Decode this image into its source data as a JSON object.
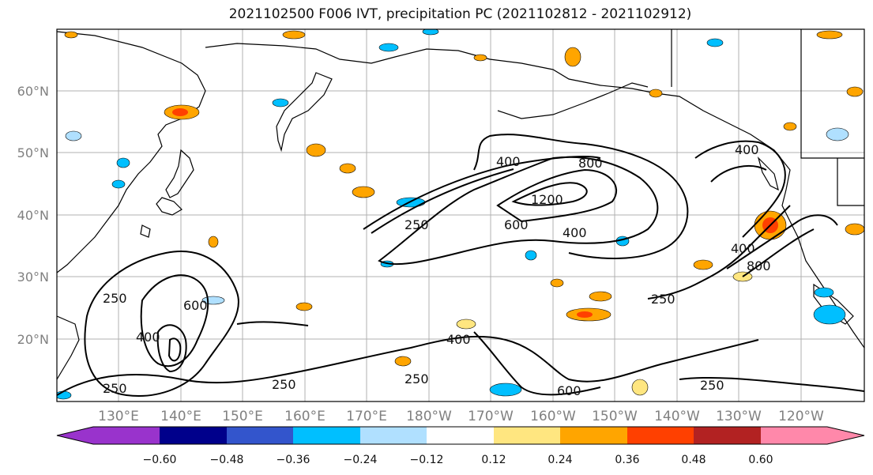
{
  "title": "2021102500 F006 IVT, precipitation PC (2021102812 - 2021102912)",
  "lat_labels": [
    "60°N",
    "50°N",
    "40°N",
    "30°N",
    "20°N"
  ],
  "lon_labels": [
    "130°E",
    "140°E",
    "150°E",
    "160°E",
    "170°E",
    "180°W",
    "170°W",
    "160°W",
    "150°W",
    "140°W",
    "130°W",
    "120°W"
  ],
  "colorbar": {
    "colors": [
      "#9933cc",
      "#00008b",
      "#3355cc",
      "#00bfff",
      "#b0e0ff",
      "#ffffff",
      "#ffe680",
      "#ffa500",
      "#ff4000",
      "#b22222",
      "#ff88aa"
    ],
    "tick_labels": [
      "−0.60",
      "−0.48",
      "−0.36",
      "−0.24",
      "−0.12",
      "0.12",
      "0.24",
      "0.36",
      "0.48",
      "0.60"
    ]
  },
  "contour_labels": [
    "400",
    "800",
    "1200",
    "600",
    "400",
    "250",
    "250",
    "600",
    "400",
    "250",
    "250",
    "400",
    "250",
    "600",
    "250",
    "400",
    "400",
    "800",
    "250"
  ]
}
